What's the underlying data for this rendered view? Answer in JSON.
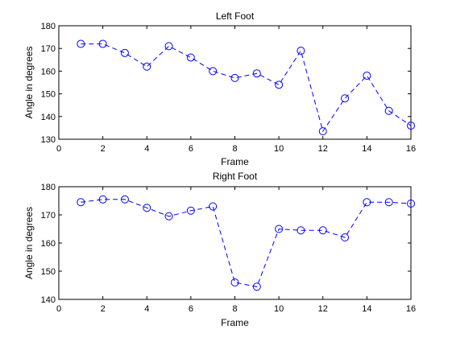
{
  "chart_data": [
    {
      "type": "line",
      "title": "Left Foot",
      "xlabel": "Frame",
      "ylabel": "Angle in degrees",
      "xlim": [
        0,
        16
      ],
      "ylim": [
        130,
        180
      ],
      "xticks": [
        0,
        2,
        4,
        6,
        8,
        10,
        12,
        14,
        16
      ],
      "yticks": [
        130,
        140,
        150,
        160,
        170,
        180
      ],
      "grid": false,
      "line_style": "dashed",
      "marker": "circle",
      "color": "#0000ff",
      "x": [
        1,
        2,
        3,
        4,
        5,
        6,
        7,
        8,
        9,
        10,
        11,
        12,
        13,
        14,
        15,
        16
      ],
      "values": [
        172,
        172,
        168,
        162,
        171,
        166,
        160,
        157,
        159,
        154,
        169,
        133.5,
        148,
        158,
        142.5,
        136
      ]
    },
    {
      "type": "line",
      "title": "Right Foot",
      "xlabel": "Frame",
      "ylabel": "Angle in degrees",
      "xlim": [
        0,
        16
      ],
      "ylim": [
        140,
        180
      ],
      "xticks": [
        0,
        2,
        4,
        6,
        8,
        10,
        12,
        14,
        16
      ],
      "yticks": [
        140,
        150,
        160,
        170,
        180
      ],
      "grid": false,
      "line_style": "dashed",
      "marker": "circle",
      "color": "#0000ff",
      "x": [
        1,
        2,
        3,
        4,
        5,
        6,
        7,
        8,
        9,
        10,
        11,
        12,
        13,
        14,
        15,
        16
      ],
      "values": [
        174.5,
        175.5,
        175.5,
        172.5,
        169.5,
        171.5,
        173,
        146,
        144.5,
        165,
        164.5,
        164.5,
        162,
        174.5,
        174.5,
        174
      ]
    }
  ]
}
